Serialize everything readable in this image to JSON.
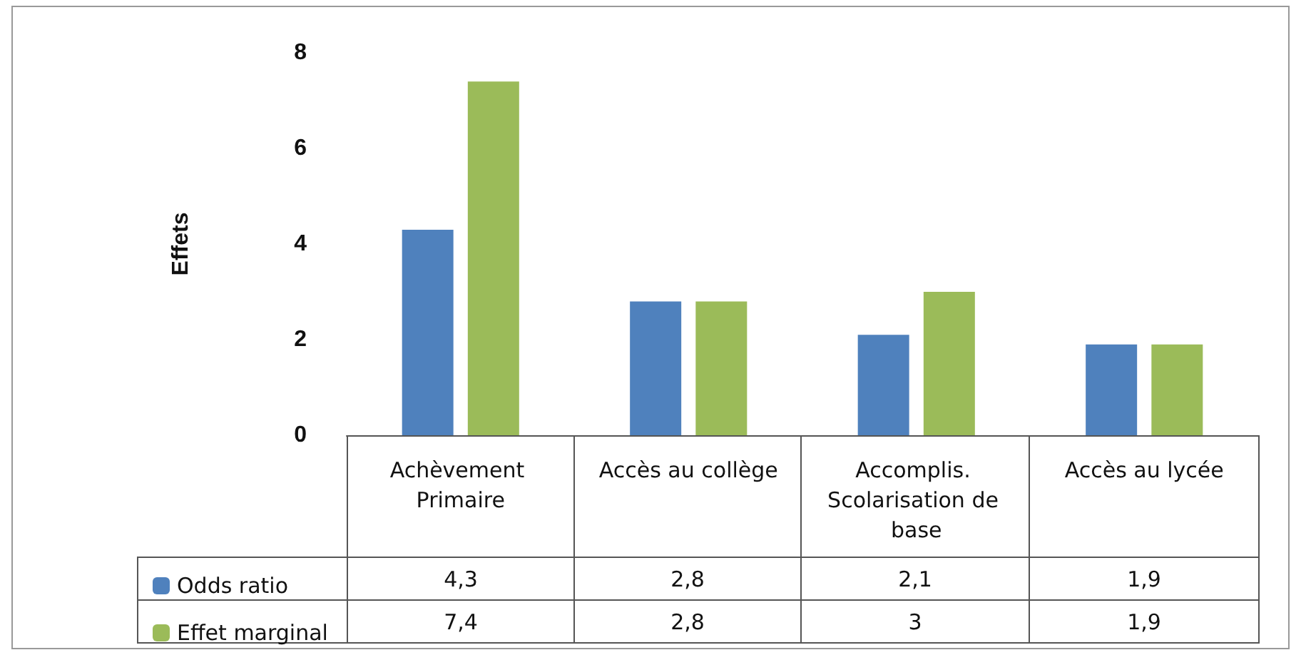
{
  "chart_data": {
    "type": "bar",
    "ylabel": "Effets",
    "categories": [
      "Achèvement Primaire",
      "Accès au collège",
      "Accomplis. Scolarisation de base",
      "Accès au lycée"
    ],
    "series": [
      {
        "name": "Odds ratio",
        "color": "#4f81bd",
        "values": [
          4.3,
          2.8,
          2.1,
          1.9
        ],
        "value_labels": [
          "4,3",
          "2,8",
          "2,1",
          "1,9"
        ]
      },
      {
        "name": "Effet marginal",
        "color": "#9bbb59",
        "values": [
          7.4,
          2.8,
          3,
          1.9
        ],
        "value_labels": [
          "7,4",
          "2,8",
          "3",
          "1,9"
        ]
      }
    ],
    "ylim": [
      0,
      8
    ],
    "yticks": [
      0,
      2,
      4,
      6,
      8
    ],
    "grid": false,
    "legend": "bottom left"
  }
}
